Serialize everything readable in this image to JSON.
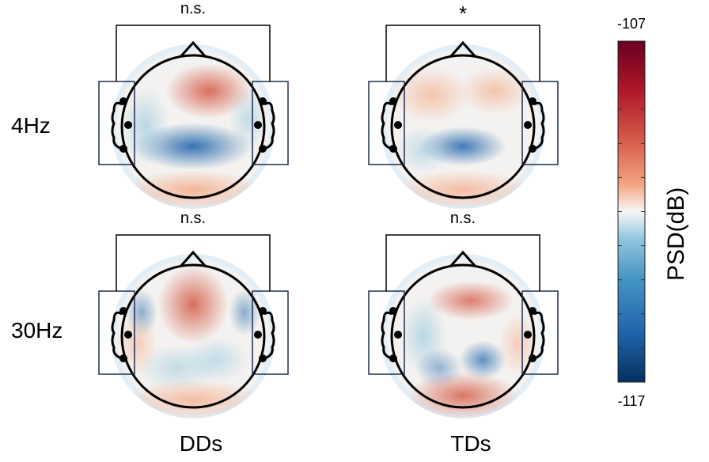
{
  "chart_data": {
    "type": "heatmap",
    "subtype": "eeg-topoplot-grid",
    "rows": [
      "4Hz",
      "30Hz"
    ],
    "columns": [
      "DDs",
      "TDs"
    ],
    "significance": [
      [
        "n.s.",
        "*"
      ],
      [
        "n.s.",
        "n.s."
      ]
    ],
    "colorbar": {
      "label": "PSD(dB)",
      "min": -117,
      "max": -107,
      "min_label": "-117",
      "max_label": "-107",
      "colormap": "RdBu_r"
    },
    "colors": {
      "low": "#053061",
      "mid": "#f7f7f7",
      "high": "#67001f"
    }
  }
}
